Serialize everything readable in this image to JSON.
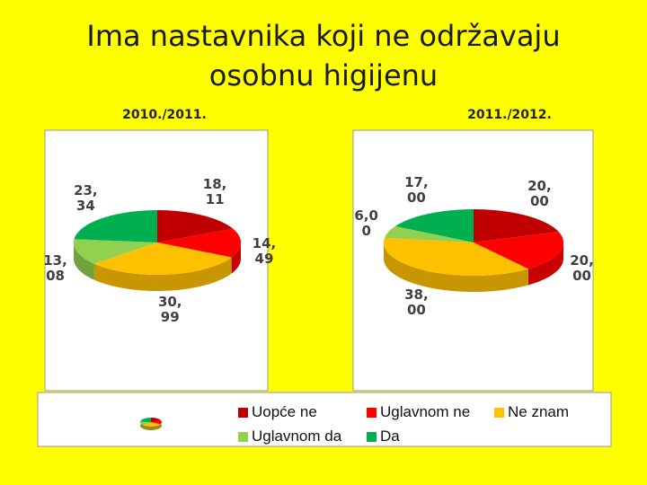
{
  "title": "Ima nastavnika koji ne održavaju osobnu higijenu",
  "chart_data": [
    {
      "type": "pie",
      "title": "2010./2011.",
      "categories": [
        "Uopće ne",
        "Uglavnom ne",
        "Ne znam",
        "Uglavnom da",
        "Da"
      ],
      "values": [
        18.11,
        14.49,
        30.99,
        13.08,
        23.34
      ],
      "value_labels": [
        "18,11",
        "14,49",
        "30,99",
        "13,08",
        "23,34"
      ],
      "colors": [
        "#c00000",
        "#ff0000",
        "#ffc000",
        "#92d050",
        "#00b050"
      ]
    },
    {
      "type": "pie",
      "title": "2011./2012.",
      "categories": [
        "Uopće ne",
        "Uglavnom ne",
        "Ne znam",
        "Uglavnom da",
        "Da"
      ],
      "values": [
        20.0,
        20.0,
        38.0,
        6.0,
        17.0
      ],
      "value_labels": [
        "20,00",
        "20,00",
        "38,00",
        "6,00",
        "17,00"
      ],
      "colors": [
        "#c00000",
        "#ff0000",
        "#ffc000",
        "#92d050",
        "#00b050"
      ]
    }
  ]
}
